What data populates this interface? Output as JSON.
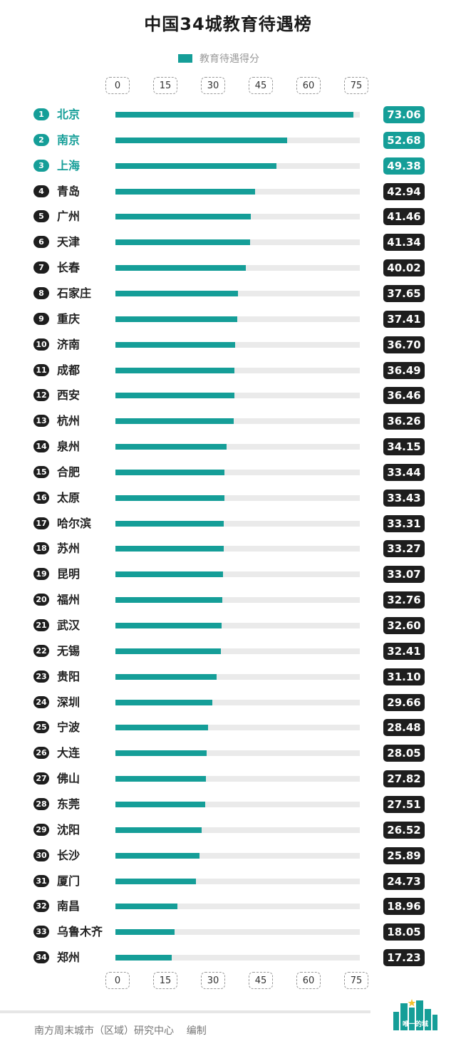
{
  "colors": {
    "accent": "#159e98",
    "dark": "#1e1e1e",
    "track": "#eaeaea"
  },
  "footer": {
    "credit": "南方周末城市（区域）研究中心    编制",
    "logo_text": "唯一的城"
  },
  "chart_data": {
    "type": "bar",
    "orientation": "horizontal",
    "title": "中国34城教育待遇榜",
    "legend": {
      "label": "教育待遇得分",
      "placement": "top-center"
    },
    "xlim": [
      0,
      75
    ],
    "ticks": [
      0,
      15,
      30,
      45,
      60,
      75
    ],
    "rows": [
      {
        "rank": "1",
        "city": "北京",
        "value": 73.06,
        "label": "73.06"
      },
      {
        "rank": "2",
        "city": "南京",
        "value": 52.68,
        "label": "52.68"
      },
      {
        "rank": "3",
        "city": "上海",
        "value": 49.38,
        "label": "49.38"
      },
      {
        "rank": "4",
        "city": "青岛",
        "value": 42.94,
        "label": "42.94"
      },
      {
        "rank": "5",
        "city": "广州",
        "value": 41.46,
        "label": "41.46"
      },
      {
        "rank": "6",
        "city": "天津",
        "value": 41.34,
        "label": "41.34"
      },
      {
        "rank": "7",
        "city": "长春",
        "value": 40.02,
        "label": "40.02"
      },
      {
        "rank": "8",
        "city": "石家庄",
        "value": 37.65,
        "label": "37.65"
      },
      {
        "rank": "9",
        "city": "重庆",
        "value": 37.41,
        "label": "37.41"
      },
      {
        "rank": "10",
        "city": "济南",
        "value": 36.7,
        "label": "36.70"
      },
      {
        "rank": "11",
        "city": "成都",
        "value": 36.49,
        "label": "36.49"
      },
      {
        "rank": "12",
        "city": "西安",
        "value": 36.46,
        "label": "36.46"
      },
      {
        "rank": "13",
        "city": "杭州",
        "value": 36.26,
        "label": "36.26"
      },
      {
        "rank": "14",
        "city": "泉州",
        "value": 34.15,
        "label": "34.15"
      },
      {
        "rank": "15",
        "city": "合肥",
        "value": 33.44,
        "label": "33.44"
      },
      {
        "rank": "16",
        "city": "太原",
        "value": 33.43,
        "label": "33.43"
      },
      {
        "rank": "17",
        "city": "哈尔滨",
        "value": 33.31,
        "label": "33.31"
      },
      {
        "rank": "18",
        "city": "苏州",
        "value": 33.27,
        "label": "33.27"
      },
      {
        "rank": "19",
        "city": "昆明",
        "value": 33.07,
        "label": "33.07"
      },
      {
        "rank": "20",
        "city": "福州",
        "value": 32.76,
        "label": "32.76"
      },
      {
        "rank": "21",
        "city": "武汉",
        "value": 32.6,
        "label": "32.60"
      },
      {
        "rank": "22",
        "city": "无锡",
        "value": 32.41,
        "label": "32.41"
      },
      {
        "rank": "23",
        "city": "贵阳",
        "value": 31.1,
        "label": "31.10"
      },
      {
        "rank": "24",
        "city": "深圳",
        "value": 29.66,
        "label": "29.66"
      },
      {
        "rank": "25",
        "city": "宁波",
        "value": 28.48,
        "label": "28.48"
      },
      {
        "rank": "26",
        "city": "大连",
        "value": 28.05,
        "label": "28.05"
      },
      {
        "rank": "27",
        "city": "佛山",
        "value": 27.82,
        "label": "27.82"
      },
      {
        "rank": "28",
        "city": "东莞",
        "value": 27.51,
        "label": "27.51"
      },
      {
        "rank": "29",
        "city": "沈阳",
        "value": 26.52,
        "label": "26.52"
      },
      {
        "rank": "30",
        "city": "长沙",
        "value": 25.89,
        "label": "25.89"
      },
      {
        "rank": "31",
        "city": "厦门",
        "value": 24.73,
        "label": "24.73"
      },
      {
        "rank": "32",
        "city": "南昌",
        "value": 18.96,
        "label": "18.96"
      },
      {
        "rank": "33",
        "city": "乌鲁木齐",
        "value": 18.05,
        "label": "18.05"
      },
      {
        "rank": "34",
        "city": "郑州",
        "value": 17.23,
        "label": "17.23"
      }
    ]
  }
}
